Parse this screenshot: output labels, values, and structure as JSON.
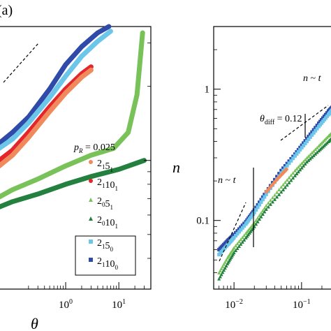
{
  "figure": {
    "panel_label": "(a)"
  },
  "chart_data": [
    {
      "type": "line",
      "panel": "left",
      "xlabel": "θ",
      "ylabel": "",
      "x_scale": "log",
      "y_scale": "log",
      "xlim": [
        0.05,
        40
      ],
      "ylim": [
        0.3,
        3.5
      ],
      "x_tick_labels": [
        "10^0",
        "10^1"
      ],
      "y_tick_labels": [],
      "legend": {
        "title": "p_R = 0.025",
        "placement": "right",
        "entries": [
          {
            "label": "2_1 5_1",
            "color": "#f08a5d",
            "marker": "circle"
          },
          {
            "label": "2_1 10_1",
            "color": "#e3262b",
            "marker": "circle"
          },
          {
            "label": "2_0 5_1",
            "color": "#79c25a",
            "marker": "triangle"
          },
          {
            "label": "2_0 10_1",
            "color": "#24803e",
            "marker": "triangle"
          },
          {
            "label": "2_1 5_0",
            "color": "#6cc6ea",
            "marker": "square",
            "boxed": true
          },
          {
            "label": "2_1 10_0",
            "color": "#2f4aa8",
            "marker": "square",
            "boxed": true
          }
        ]
      },
      "series": [
        {
          "label": "2_1 10_0",
          "color": "#2f4aa8",
          "x": [
            0.05,
            0.1,
            0.2,
            0.5,
            1,
            2,
            4,
            6.5
          ],
          "y": [
            1.15,
            1.3,
            1.5,
            1.95,
            2.45,
            2.9,
            3.3,
            3.5
          ]
        },
        {
          "label": "2_1 5_0",
          "color": "#6cc6ea",
          "x": [
            0.05,
            0.1,
            0.2,
            0.5,
            1,
            2,
            4,
            7
          ],
          "y": [
            1.1,
            1.22,
            1.42,
            1.8,
            2.2,
            2.65,
            3.05,
            3.35
          ]
        },
        {
          "label": "2_1 10_1",
          "color": "#e3262b",
          "x": [
            0.05,
            0.1,
            0.2,
            0.5,
            1,
            2,
            3
          ],
          "y": [
            0.98,
            1.1,
            1.3,
            1.65,
            1.95,
            2.25,
            2.4
          ]
        },
        {
          "label": "2_1 5_1",
          "color": "#f08a5d",
          "x": [
            0.05,
            0.1,
            0.2,
            0.5,
            1,
            2,
            3
          ],
          "y": [
            0.93,
            1.05,
            1.24,
            1.58,
            1.88,
            2.18,
            2.33
          ]
        },
        {
          "label": "2_0 5_1",
          "color": "#79c25a",
          "x": [
            0.05,
            0.1,
            0.3,
            1,
            3,
            8,
            15,
            22,
            28
          ],
          "y": [
            0.7,
            0.76,
            0.84,
            0.95,
            1.05,
            1.12,
            1.3,
            1.85,
            3.3
          ]
        },
        {
          "label": "2_0 10_1",
          "color": "#24803e",
          "x": [
            0.05,
            0.1,
            0.3,
            1,
            3,
            10,
            20,
            30
          ],
          "y": [
            0.64,
            0.68,
            0.73,
            0.8,
            0.86,
            0.92,
            0.97,
            1.0
          ]
        }
      ]
    },
    {
      "type": "line",
      "panel": "right",
      "xlabel": "",
      "ylabel": "n",
      "x_scale": "log",
      "y_scale": "log",
      "xlim": [
        0.005,
        0.3
      ],
      "ylim": [
        0.03,
        3
      ],
      "x_tick_labels": [
        "10^-2",
        "10^-1"
      ],
      "y_tick_labels": [
        "1",
        "0.1"
      ],
      "annotations": [
        "n ~ t",
        "n ~ t",
        "θ_diff = 0.12"
      ],
      "series": [
        {
          "label": "2_1 10_0",
          "color": "#2f4aa8",
          "marker": "square",
          "x": [
            0.006,
            0.008,
            0.01,
            0.015,
            0.02,
            0.03,
            0.05,
            0.08,
            0.12,
            0.18,
            0.25,
            0.3
          ],
          "y": [
            0.06,
            0.07,
            0.078,
            0.098,
            0.12,
            0.165,
            0.24,
            0.32,
            0.42,
            0.55,
            0.68,
            0.75
          ]
        },
        {
          "label": "2_1 5_0",
          "color": "#6cc6ea",
          "marker": "square",
          "x": [
            0.006,
            0.008,
            0.01,
            0.015,
            0.02,
            0.03,
            0.05,
            0.08,
            0.12,
            0.18,
            0.25,
            0.3
          ],
          "y": [
            0.055,
            0.065,
            0.074,
            0.094,
            0.115,
            0.158,
            0.23,
            0.31,
            0.4,
            0.52,
            0.64,
            0.72
          ]
        },
        {
          "label": "2_1 5_1",
          "color": "#f08a5d",
          "marker": "circle",
          "x": [
            0.03,
            0.045,
            0.06
          ],
          "y": [
            0.165,
            0.21,
            0.245
          ]
        },
        {
          "label": "2_0 5_1",
          "color": "#79c25a",
          "marker": "triangle",
          "x": [
            0.006,
            0.008,
            0.01,
            0.015,
            0.02,
            0.03,
            0.05,
            0.08,
            0.12,
            0.18,
            0.25,
            0.3
          ],
          "y": [
            0.04,
            0.052,
            0.062,
            0.08,
            0.096,
            0.13,
            0.18,
            0.24,
            0.3,
            0.37,
            0.44,
            0.48
          ]
        },
        {
          "label": "2_0 10_1",
          "color": "#24803e",
          "marker": "triangle",
          "x": [
            0.006,
            0.008,
            0.01,
            0.015,
            0.02,
            0.03,
            0.05,
            0.08,
            0.12,
            0.18,
            0.25,
            0.3
          ],
          "y": [
            0.036,
            0.047,
            0.057,
            0.074,
            0.09,
            0.122,
            0.165,
            0.22,
            0.28,
            0.34,
            0.4,
            0.44
          ]
        }
      ]
    }
  ]
}
